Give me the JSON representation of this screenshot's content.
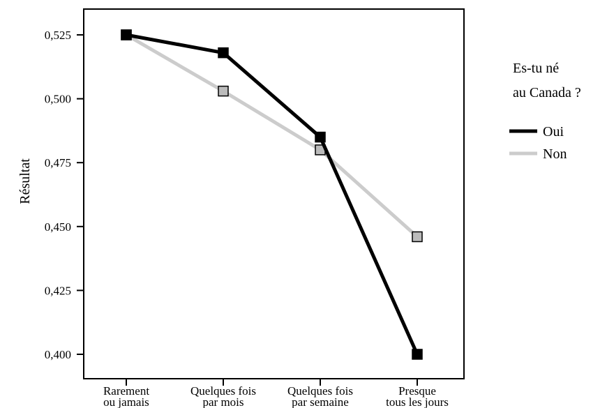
{
  "chart_data": {
    "type": "line",
    "categories": [
      [
        "Rarement",
        "ou jamais"
      ],
      [
        "Quelques fois",
        "par mois"
      ],
      [
        "Quelques fois",
        "par semaine"
      ],
      [
        "Presque",
        "tous les jours"
      ]
    ],
    "ylabel": "Résultat",
    "ylim": [
      0.4,
      0.525
    ],
    "yticks": [
      {
        "value": 0.4,
        "label": "0,400"
      },
      {
        "value": 0.425,
        "label": "0,425"
      },
      {
        "value": 0.45,
        "label": "0,450"
      },
      {
        "value": 0.475,
        "label": "0,475"
      },
      {
        "value": 0.5,
        "label": "0,500"
      },
      {
        "value": 0.525,
        "label": "0,525"
      }
    ],
    "legend": {
      "title_lines": [
        "Es-tu né",
        "au Canada ?"
      ],
      "placement": "right"
    },
    "series": [
      {
        "name": "Oui",
        "color": "#000000",
        "marker_fill": "#000000",
        "values": [
          0.525,
          0.518,
          0.485,
          0.4
        ]
      },
      {
        "name": "Non",
        "color": "#cccccc",
        "marker_fill": "#bbbbbb",
        "values": [
          0.525,
          0.503,
          0.48,
          0.446
        ]
      }
    ],
    "grid": false
  }
}
